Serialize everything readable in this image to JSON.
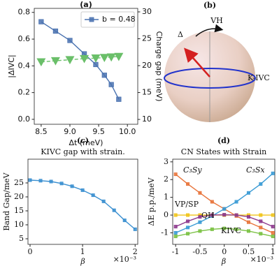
{
  "chart_data": [
    {
      "type": "line",
      "panel": "(a)",
      "xlabel": "Δt (meV)",
      "ylabel": "|ΔIVC|",
      "y2label": "Charge gap (meV)",
      "xlim": [
        8.38,
        10.18
      ],
      "ylim": [
        -0.037,
        0.83
      ],
      "y2lim": [
        9.1,
        30.65
      ],
      "xticks": [
        8.5,
        {
          "value": 9,
          "label": "9.0"
        },
        9.5,
        {
          "value": 10,
          "label": "10.0"
        }
      ],
      "yticks": [
        {
          "value": 0,
          "label": "0.0"
        },
        0.2,
        0.4,
        0.6,
        0.8
      ],
      "y2ticks": [
        10,
        15,
        20,
        25,
        30
      ],
      "legend": "upper right",
      "series": [
        {
          "name": "b = 0.48",
          "color": "#4a72b0",
          "marker": "square",
          "x": [
            8.5,
            8.75,
            9.0,
            9.25,
            9.45,
            9.6,
            9.72,
            9.85
          ],
          "values": [
            0.73,
            0.66,
            0.59,
            0.49,
            0.41,
            0.33,
            0.26,
            0.15
          ]
        },
        {
          "color": "#6abf69",
          "marker": "triangle-down",
          "linestyle": "dashed",
          "axis": "y2",
          "x": [
            8.5,
            8.75,
            9.0,
            9.25,
            9.45,
            9.6,
            9.72,
            9.85
          ],
          "values": [
            20.7,
            20.9,
            21.1,
            21.3,
            21.4,
            21.5,
            21.6,
            21.7
          ]
        }
      ]
    },
    {
      "type": "diagram",
      "panel": "(b)",
      "labels": [
        "VH",
        "Δ",
        "K-IVC"
      ]
    },
    {
      "type": "line",
      "panel": "(c)",
      "title": "KIVC gap with strain.",
      "xlabel": "β",
      "ylabel": "Band Gap/meV",
      "x_offset": "×10⁻³",
      "xlim": [
        -0.04,
        2.05
      ],
      "ylim": [
        3,
        33.5
      ],
      "xticks": [
        0,
        1,
        2
      ],
      "yticks": [
        5,
        10,
        15,
        20,
        25
      ],
      "series": [
        {
          "color": "#3a8fd0",
          "marker": "square",
          "x": [
            0,
            0.2,
            0.4,
            0.6,
            0.8,
            1.0,
            1.2,
            1.4,
            1.6,
            1.8,
            2.0
          ],
          "values": [
            26,
            25.8,
            25.5,
            24.8,
            23.8,
            22.4,
            20.6,
            18.4,
            15.2,
            11.6,
            8.4
          ]
        }
      ]
    },
    {
      "type": "line",
      "panel": "(d)",
      "title": "CN States with Strain",
      "xlabel": "β",
      "ylabel": "ΔE p.p./meV",
      "x_offset": "×10⁻³",
      "xlim": [
        -1.06,
        1.04
      ],
      "ylim": [
        -1.65,
        3.15
      ],
      "xticks": [
        -1,
        -0.5,
        0,
        0.5,
        1
      ],
      "yticks": [
        -1,
        0,
        1,
        2,
        3
      ],
      "series": [
        {
          "name": "C₃Sy",
          "color": "#e8743b",
          "marker": "square",
          "x": [
            -1,
            -0.75,
            -0.5,
            -0.25,
            0,
            0.25,
            0.5,
            0.75,
            1
          ],
          "values": [
            2.3,
            1.75,
            1.25,
            0.75,
            0.35,
            -0.05,
            -0.4,
            -0.7,
            -1.0
          ]
        },
        {
          "name": "C₃Sx",
          "color": "#3a9bd5",
          "marker": "square",
          "x": [
            -1,
            -0.75,
            -0.5,
            -0.25,
            0,
            0.25,
            0.5,
            0.75,
            1
          ],
          "values": [
            -1.0,
            -0.7,
            -0.4,
            -0.05,
            0.35,
            0.75,
            1.25,
            1.75,
            2.35
          ]
        },
        {
          "name": "VP/SP",
          "color": "#f0c419",
          "marker": "square",
          "x": [
            -1,
            -0.75,
            -0.5,
            -0.25,
            0,
            0.25,
            0.5,
            0.75,
            1
          ],
          "values": [
            0,
            0,
            0,
            0,
            0,
            0,
            0,
            0,
            0
          ]
        },
        {
          "name": "QH",
          "color": "#8e3a8e",
          "marker": "square",
          "x": [
            -1,
            -0.75,
            -0.5,
            -0.25,
            0,
            0.25,
            0.5,
            0.75,
            1
          ],
          "values": [
            -0.65,
            -0.35,
            -0.1,
            0.0,
            0.02,
            0.0,
            -0.1,
            -0.35,
            -0.65
          ]
        },
        {
          "name": "KIVC",
          "color": "#7ac142",
          "marker": "square",
          "x": [
            -1,
            -0.75,
            -0.5,
            -0.25,
            0,
            0.25,
            0.5,
            0.75,
            1
          ],
          "values": [
            -1.2,
            -1.05,
            -0.9,
            -0.8,
            -0.75,
            -0.8,
            -0.9,
            -1.05,
            -1.2
          ]
        }
      ]
    }
  ]
}
